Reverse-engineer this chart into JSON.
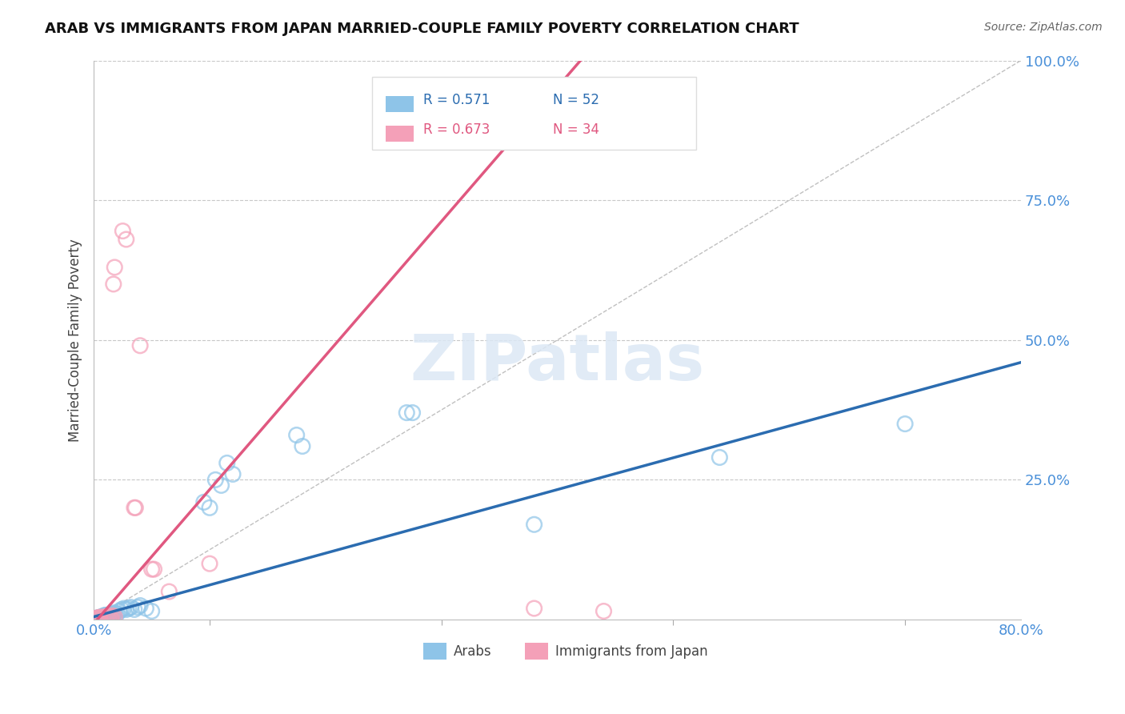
{
  "title": "ARAB VS IMMIGRANTS FROM JAPAN MARRIED-COUPLE FAMILY POVERTY CORRELATION CHART",
  "source": "Source: ZipAtlas.com",
  "ylabel": "Married-Couple Family Poverty",
  "xlim": [
    0,
    0.8
  ],
  "ylim": [
    0,
    1.0
  ],
  "background_color": "#ffffff",
  "grid_color": "#c8c8c8",
  "watermark": "ZIPatlas",
  "legend_R_arab": "R = 0.571",
  "legend_N_arab": "N = 52",
  "legend_R_japan": "R = 0.673",
  "legend_N_japan": "N = 34",
  "arab_color": "#8ec4e8",
  "japan_color": "#f4a0b8",
  "arab_line_color": "#2b6cb0",
  "japan_line_color": "#e05880",
  "diag_line_color": "#c0c0c0",
  "tick_color": "#4a90d9",
  "arab_scatter": [
    [
      0.001,
      0.001
    ],
    [
      0.002,
      0.002
    ],
    [
      0.002,
      0.001
    ],
    [
      0.003,
      0.003
    ],
    [
      0.003,
      0.002
    ],
    [
      0.004,
      0.001
    ],
    [
      0.004,
      0.003
    ],
    [
      0.005,
      0.002
    ],
    [
      0.005,
      0.004
    ],
    [
      0.006,
      0.002
    ],
    [
      0.006,
      0.003
    ],
    [
      0.007,
      0.003
    ],
    [
      0.007,
      0.005
    ],
    [
      0.008,
      0.004
    ],
    [
      0.008,
      0.006
    ],
    [
      0.009,
      0.003
    ],
    [
      0.009,
      0.007
    ],
    [
      0.01,
      0.005
    ],
    [
      0.01,
      0.008
    ],
    [
      0.011,
      0.006
    ],
    [
      0.012,
      0.008
    ],
    [
      0.013,
      0.007
    ],
    [
      0.014,
      0.009
    ],
    [
      0.015,
      0.01
    ],
    [
      0.016,
      0.008
    ],
    [
      0.017,
      0.01
    ],
    [
      0.018,
      0.012
    ],
    [
      0.02,
      0.01
    ],
    [
      0.022,
      0.015
    ],
    [
      0.024,
      0.018
    ],
    [
      0.026,
      0.02
    ],
    [
      0.028,
      0.018
    ],
    [
      0.03,
      0.02
    ],
    [
      0.032,
      0.022
    ],
    [
      0.035,
      0.018
    ],
    [
      0.038,
      0.022
    ],
    [
      0.04,
      0.025
    ],
    [
      0.045,
      0.02
    ],
    [
      0.05,
      0.015
    ],
    [
      0.095,
      0.21
    ],
    [
      0.1,
      0.2
    ],
    [
      0.105,
      0.25
    ],
    [
      0.11,
      0.24
    ],
    [
      0.115,
      0.28
    ],
    [
      0.12,
      0.26
    ],
    [
      0.175,
      0.33
    ],
    [
      0.18,
      0.31
    ],
    [
      0.27,
      0.37
    ],
    [
      0.275,
      0.37
    ],
    [
      0.38,
      0.17
    ],
    [
      0.54,
      0.29
    ],
    [
      0.7,
      0.35
    ]
  ],
  "japan_scatter": [
    [
      0.001,
      0.001
    ],
    [
      0.002,
      0.002
    ],
    [
      0.002,
      0.001
    ],
    [
      0.003,
      0.003
    ],
    [
      0.003,
      0.002
    ],
    [
      0.004,
      0.001
    ],
    [
      0.004,
      0.003
    ],
    [
      0.005,
      0.002
    ],
    [
      0.005,
      0.004
    ],
    [
      0.006,
      0.003
    ],
    [
      0.007,
      0.004
    ],
    [
      0.008,
      0.003
    ],
    [
      0.009,
      0.005
    ],
    [
      0.01,
      0.004
    ],
    [
      0.011,
      0.005
    ],
    [
      0.012,
      0.006
    ],
    [
      0.013,
      0.004
    ],
    [
      0.014,
      0.006
    ],
    [
      0.015,
      0.003
    ],
    [
      0.016,
      0.007
    ],
    [
      0.018,
      0.005
    ],
    [
      0.025,
      0.695
    ],
    [
      0.028,
      0.68
    ],
    [
      0.04,
      0.49
    ],
    [
      0.065,
      0.05
    ],
    [
      0.38,
      0.02
    ],
    [
      0.44,
      0.015
    ],
    [
      0.05,
      0.09
    ],
    [
      0.052,
      0.09
    ],
    [
      0.035,
      0.2
    ],
    [
      0.036,
      0.2
    ],
    [
      0.017,
      0.6
    ],
    [
      0.018,
      0.63
    ],
    [
      0.1,
      0.1
    ]
  ],
  "arab_line_x": [
    0.0,
    0.8
  ],
  "arab_line_y": [
    0.005,
    0.46
  ],
  "japan_line_x": [
    0.003,
    0.42
  ],
  "japan_line_y": [
    0.0,
    1.0
  ],
  "diag_line_x": [
    0.0,
    0.8
  ],
  "diag_line_y": [
    0.0,
    1.0
  ]
}
